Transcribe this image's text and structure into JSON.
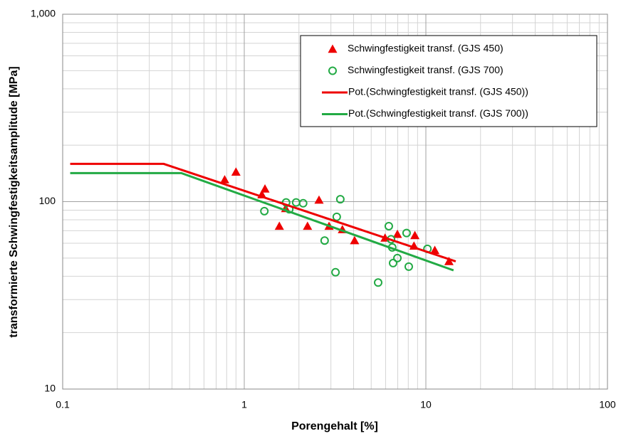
{
  "chart_data": {
    "type": "scatter",
    "xlabel": "Porengehalt [%]",
    "ylabel": "transformierte Schwingfestigkeitsamplitude [MPa]",
    "xscale": "log",
    "yscale": "log",
    "xlim": [
      0.1,
      100
    ],
    "ylim": [
      10,
      1000
    ],
    "xticks": [
      0.1,
      1,
      10,
      100
    ],
    "yticks": [
      10,
      100,
      {
        "value": 1000,
        "label": "1,000"
      }
    ],
    "grid": true,
    "series": [
      {
        "name": "Schwingfestigkeit transf. (GJS 450)",
        "color": "#ee0000",
        "marker": "triangle",
        "x": [
          0.78,
          0.9,
          1.25,
          1.3,
          1.56,
          1.69,
          2.23,
          2.58,
          2.93,
          3.47,
          4.05,
          5.96,
          6.97,
          8.6,
          8.7,
          11.2,
          13.4
        ],
        "values": [
          131,
          144,
          109,
          117,
          74,
          92,
          74,
          102,
          74,
          71,
          62,
          64,
          67,
          58,
          66,
          55,
          48
        ]
      },
      {
        "name": "Schwingfestigkeit transf. (GJS 700)",
        "color": "#22aa44",
        "marker": "circle",
        "x": [
          1.29,
          1.7,
          1.77,
          1.93,
          2.11,
          2.77,
          3.23,
          3.38,
          3.18,
          5.46,
          6.25,
          6.43,
          6.53,
          6.6,
          6.97,
          7.83,
          8.05,
          10.2
        ],
        "values": [
          89,
          99,
          91,
          99,
          98,
          62,
          83,
          103,
          42,
          37,
          74,
          63,
          57,
          47,
          50,
          68,
          45,
          56
        ]
      },
      {
        "name": "Pot.(Schwingfestigkeit transf. (GJS 450))",
        "color": "#ee0000",
        "marker": "line",
        "x": [
          0.11,
          0.36,
          14.6
        ],
        "values": [
          159,
          159,
          48
        ]
      },
      {
        "name": "Pot.(Schwingfestigkeit transf. (GJS 700))",
        "color": "#22aa44",
        "marker": "line",
        "x": [
          0.11,
          0.45,
          14.2
        ],
        "values": [
          142,
          142,
          43
        ]
      }
    ]
  }
}
